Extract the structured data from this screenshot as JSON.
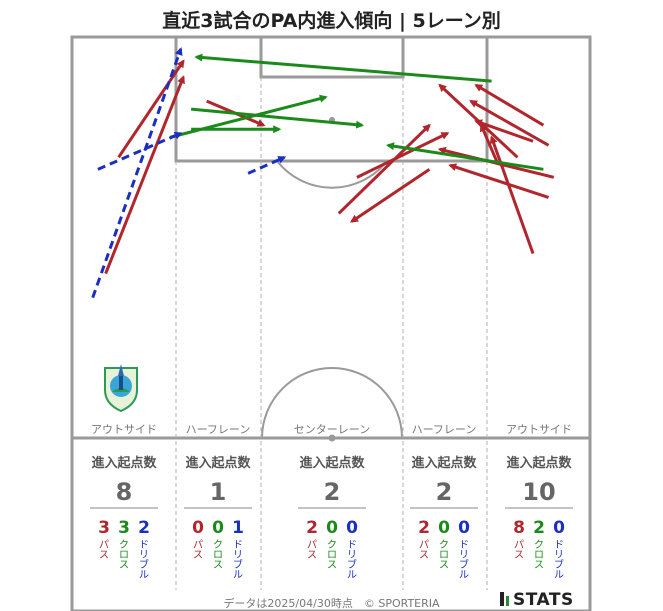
{
  "title": "直近3試合のPA内進入傾向 | 5レーン別",
  "lanes": [
    {
      "label": "アウトサイド",
      "stat_head": "進入起点数",
      "total": "8",
      "pass": "3",
      "cross": "3",
      "dribble": "2"
    },
    {
      "label": "ハーフレーン",
      "stat_head": "進入起点数",
      "total": "1",
      "pass": "0",
      "cross": "0",
      "dribble": "1"
    },
    {
      "label": "センターレーン",
      "stat_head": "進入起点数",
      "total": "2",
      "pass": "2",
      "cross": "0",
      "dribble": "0"
    },
    {
      "label": "ハーフレーン",
      "stat_head": "進入起点数",
      "total": "2",
      "pass": "2",
      "cross": "0",
      "dribble": "0"
    },
    {
      "label": "アウトサイド",
      "stat_head": "進入起点数",
      "total": "10",
      "pass": "8",
      "cross": "2",
      "dribble": "0"
    }
  ],
  "type_labels": {
    "pass": "パス",
    "cross": "クロス",
    "dribble": "ドリブル"
  },
  "colors": {
    "pass": "#b0262c",
    "cross": "#1a8a1a",
    "dribble": "#1a2fc0",
    "pitch_line": "#9a9a9a",
    "lane_divider": "#b0b0b0"
  },
  "footer": "データは2025/04/30時点　© SPORTERIA",
  "brand": "STATS",
  "logo_icon": "team-crest-icon",
  "chart_data": {
    "type": "scatter",
    "description_units": "pitch coordinates: x = 0..100 left to right across pitch width, y = 0..100 from attacking goal line down to halfway",
    "entries": [
      {
        "kind": "pass",
        "from": [
          6.5,
          59
        ],
        "to": [
          21.5,
          10
        ]
      },
      {
        "kind": "pass",
        "from": [
          9,
          30
        ],
        "to": [
          21.5,
          6
        ]
      },
      {
        "kind": "pass",
        "from": [
          51.5,
          44
        ],
        "to": [
          69,
          22
        ]
      },
      {
        "kind": "pass",
        "from": [
          55,
          35
        ],
        "to": [
          72.5,
          24
        ]
      },
      {
        "kind": "pass",
        "from": [
          69,
          33
        ],
        "to": [
          54,
          46
        ]
      },
      {
        "kind": "pass",
        "from": [
          82,
          31
        ],
        "to": [
          79,
          22
        ]
      },
      {
        "kind": "pass",
        "from": [
          91,
          22
        ],
        "to": [
          78,
          12
        ]
      },
      {
        "kind": "pass",
        "from": [
          86,
          30
        ],
        "to": [
          71,
          12
        ]
      },
      {
        "kind": "pass",
        "from": [
          92,
          40
        ],
        "to": [
          73,
          32
        ]
      },
      {
        "kind": "pass",
        "from": [
          93,
          35
        ],
        "to": [
          71,
          28
        ]
      },
      {
        "kind": "pass",
        "from": [
          89,
          54
        ],
        "to": [
          81,
          25
        ]
      },
      {
        "kind": "pass",
        "from": [
          89,
          26
        ],
        "to": [
          78,
          21
        ]
      },
      {
        "kind": "pass",
        "from": [
          92,
          27
        ],
        "to": [
          77,
          16
        ]
      },
      {
        "kind": "pass",
        "from": [
          26,
          16
        ],
        "to": [
          37,
          22
        ]
      },
      {
        "kind": "cross",
        "from": [
          81,
          11
        ],
        "to": [
          24,
          5
        ]
      },
      {
        "kind": "cross",
        "from": [
          23,
          18
        ],
        "to": [
          56,
          22
        ]
      },
      {
        "kind": "cross",
        "from": [
          19,
          25
        ],
        "to": [
          49,
          15
        ]
      },
      {
        "kind": "cross",
        "from": [
          23,
          23
        ],
        "to": [
          40,
          23
        ]
      },
      {
        "kind": "cross",
        "from": [
          91,
          33
        ],
        "to": [
          61,
          27
        ]
      },
      {
        "kind": "dribble",
        "from": [
          4,
          65
        ],
        "to": [
          21,
          3
        ]
      },
      {
        "kind": "dribble",
        "from": [
          5,
          33
        ],
        "to": [
          21,
          24
        ]
      },
      {
        "kind": "dribble",
        "from": [
          34,
          34
        ],
        "to": [
          41,
          30
        ]
      }
    ]
  }
}
